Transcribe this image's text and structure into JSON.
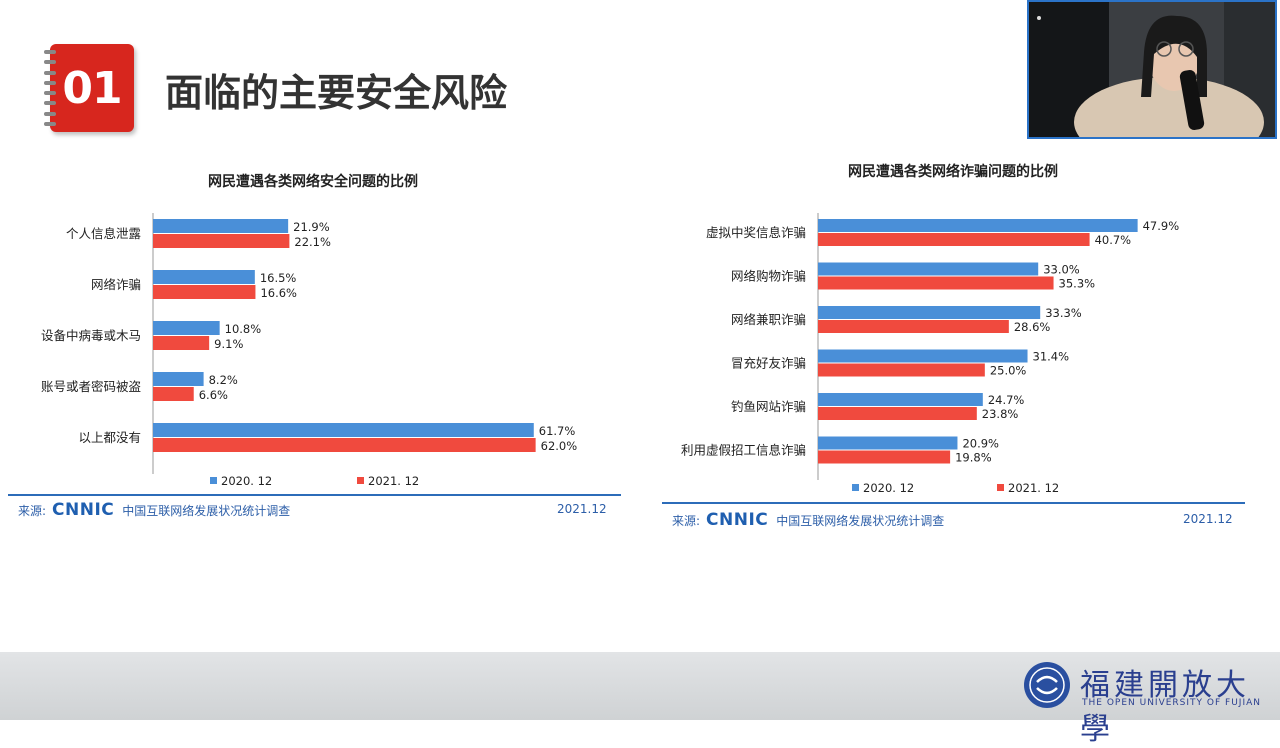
{
  "slide": {
    "section_number": "01",
    "title": "面临的主要安全风险"
  },
  "colors": {
    "series_2020": "#4a8fd8",
    "series_2021": "#f04a3e",
    "accent_red": "#d7261e",
    "brand_blue": "#2c6cb9"
  },
  "left_source": {
    "label": "来源:",
    "logo": "CNNIC",
    "desc": "中国互联网络发展状况统计调查",
    "date": "2021.12"
  },
  "right_source": {
    "label": "来源:",
    "logo": "CNNIC",
    "desc": "中国互联网络发展状况统计调查",
    "date": "2021.12"
  },
  "footer": {
    "university_cn": "福建開放大學",
    "university_en": "THE OPEN UNIVERSITY OF FUJIAN"
  },
  "chart_data": [
    {
      "type": "bar",
      "orientation": "horizontal",
      "title": "网民遭遇各类网络安全问题的比例",
      "categories": [
        "个人信息泄露",
        "网络诈骗",
        "设备中病毒或木马",
        "账号或者密码被盗",
        "以上都没有"
      ],
      "series": [
        {
          "name": "2020. 12",
          "values": [
            21.9,
            16.5,
            10.8,
            8.2,
            61.7
          ]
        },
        {
          "name": "2021. 12",
          "values": [
            22.1,
            16.6,
            9.1,
            6.6,
            62.0
          ]
        }
      ],
      "xlim": [
        0,
        70
      ],
      "value_format": "percent",
      "legend": "bottom",
      "grid": false
    },
    {
      "type": "bar",
      "orientation": "horizontal",
      "title": "网民遭遇各类网络诈骗问题的比例",
      "categories": [
        "虚拟中奖信息诈骗",
        "网络购物诈骗",
        "网络兼职诈骗",
        "冒充好友诈骗",
        "钓鱼网站诈骗",
        "利用虚假招工信息诈骗"
      ],
      "series": [
        {
          "name": "2020. 12",
          "values": [
            47.9,
            33.0,
            33.3,
            31.4,
            24.7,
            20.9
          ]
        },
        {
          "name": "2021. 12",
          "values": [
            40.7,
            35.3,
            28.6,
            25.0,
            23.8,
            19.8
          ]
        }
      ],
      "xlim": [
        0,
        55
      ],
      "value_format": "percent",
      "legend": "bottom",
      "grid": false
    }
  ]
}
